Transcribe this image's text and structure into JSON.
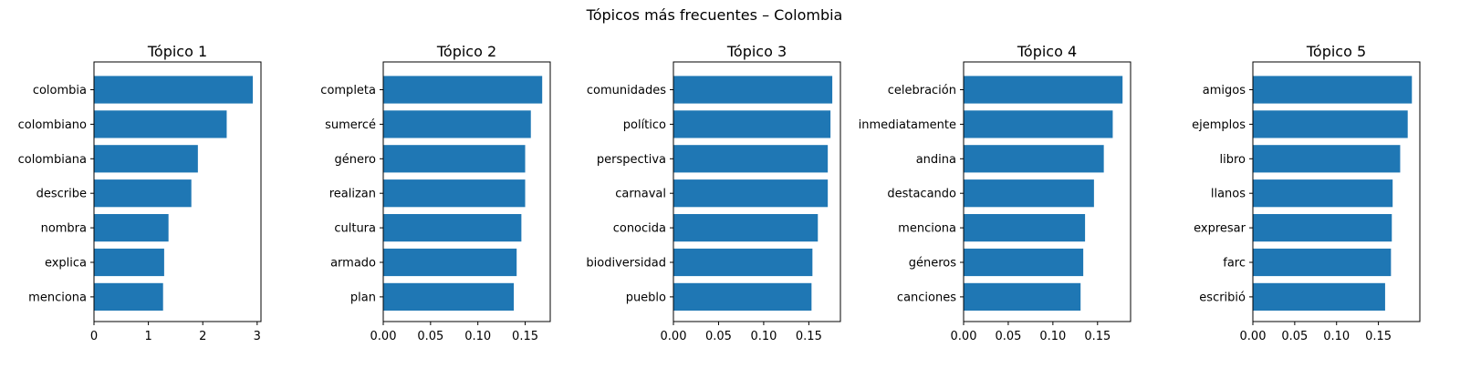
{
  "figure": {
    "suptitle": "Tópicos más frecuentes – Colombia"
  },
  "colors": {
    "bar": "#1f77b4"
  },
  "chart_data": [
    {
      "type": "bar",
      "orientation": "horizontal",
      "title": "Tópico 1",
      "categories": [
        "colombia",
        "colombiano",
        "colombiana",
        "describe",
        "nombra",
        "explica",
        "menciona"
      ],
      "values": [
        2.92,
        2.44,
        1.91,
        1.79,
        1.37,
        1.29,
        1.27
      ],
      "xlim": [
        0,
        3.07
      ],
      "xticks": [
        0,
        1,
        2,
        3
      ],
      "xtick_labels": [
        "0",
        "1",
        "2",
        "3"
      ]
    },
    {
      "type": "bar",
      "orientation": "horizontal",
      "title": "Tópico 2",
      "categories": [
        "completa",
        "sumercé",
        "género",
        "realizan",
        "cultura",
        "armado",
        "plan"
      ],
      "values": [
        0.168,
        0.156,
        0.15,
        0.15,
        0.146,
        0.141,
        0.138
      ],
      "xlim": [
        0,
        0.1765
      ],
      "xticks": [
        0,
        0.05,
        0.1,
        0.15
      ],
      "xtick_labels": [
        "0.00",
        "0.05",
        "0.10",
        "0.15"
      ]
    },
    {
      "type": "bar",
      "orientation": "horizontal",
      "title": "Tópico 3",
      "categories": [
        "comunidades",
        "político",
        "perspectiva",
        "carnaval",
        "conocida",
        "biodiversidad",
        "pueblo"
      ],
      "values": [
        0.176,
        0.174,
        0.171,
        0.171,
        0.16,
        0.154,
        0.153
      ],
      "xlim": [
        0,
        0.185
      ],
      "xticks": [
        0,
        0.05,
        0.1,
        0.15
      ],
      "xtick_labels": [
        "0.00",
        "0.05",
        "0.10",
        "0.15"
      ]
    },
    {
      "type": "bar",
      "orientation": "horizontal",
      "title": "Tópico 4",
      "categories": [
        "celebración",
        "inmediatamente",
        "andina",
        "destacando",
        "menciona",
        "géneros",
        "canciones"
      ],
      "values": [
        0.178,
        0.167,
        0.157,
        0.146,
        0.136,
        0.134,
        0.131
      ],
      "xlim": [
        0,
        0.187
      ],
      "xticks": [
        0,
        0.05,
        0.1,
        0.15
      ],
      "xtick_labels": [
        "0.00",
        "0.05",
        "0.10",
        "0.15"
      ]
    },
    {
      "type": "bar",
      "orientation": "horizontal",
      "title": "Tópico 5",
      "categories": [
        "amigos",
        "ejemplos",
        "libro",
        "llanos",
        "expresar",
        "farc",
        "escribió"
      ],
      "values": [
        0.19,
        0.185,
        0.176,
        0.167,
        0.166,
        0.165,
        0.158
      ],
      "xlim": [
        0,
        0.1995
      ],
      "xticks": [
        0,
        0.05,
        0.1,
        0.15
      ],
      "xtick_labels": [
        "0.00",
        "0.05",
        "0.10",
        "0.15"
      ]
    }
  ]
}
